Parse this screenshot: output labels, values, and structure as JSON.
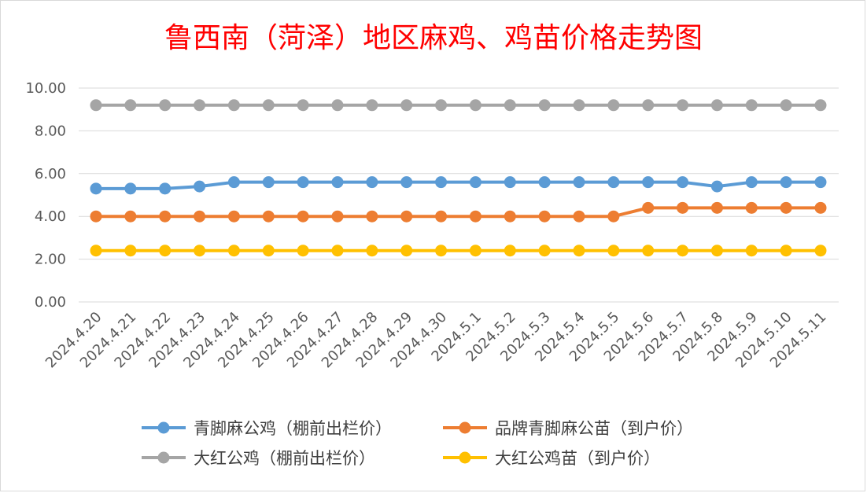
{
  "chart_data": {
    "type": "line",
    "title": "鲁西南（菏泽）地区麻鸡、鸡苗价格走势图",
    "ylim": [
      0,
      10
    ],
    "yticks": [
      "0.00",
      "2.00",
      "4.00",
      "6.00",
      "8.00",
      "10.00"
    ],
    "ytick_values": [
      0,
      2,
      4,
      6,
      8,
      10
    ],
    "grid": true,
    "legend_position": "bottom",
    "categories": [
      "2024.4.20",
      "2024.4.21",
      "2024.4.22",
      "2024.4.23",
      "2024.4.24",
      "2024.4.25",
      "2024.4.26",
      "2024.4.27",
      "2024.4.28",
      "2024.4.29",
      "2024.4.30",
      "2024.5.1",
      "2024.5.2",
      "2024.5.3",
      "2024.5.4",
      "2024.5.5",
      "2024.5.6",
      "2024.5.7",
      "2024.5.8",
      "2024.5.9",
      "2024.5.10",
      "2024.5.11"
    ],
    "series": [
      {
        "name": "青脚麻公鸡（棚前出栏价）",
        "color": "#5b9bd5",
        "values": [
          5.3,
          5.3,
          5.3,
          5.4,
          5.6,
          5.6,
          5.6,
          5.6,
          5.6,
          5.6,
          5.6,
          5.6,
          5.6,
          5.6,
          5.6,
          5.6,
          5.6,
          5.6,
          5.4,
          5.6,
          5.6,
          5.6
        ]
      },
      {
        "name": "品牌青脚麻公苗（到户价）",
        "color": "#ed7d31",
        "values": [
          4.0,
          4.0,
          4.0,
          4.0,
          4.0,
          4.0,
          4.0,
          4.0,
          4.0,
          4.0,
          4.0,
          4.0,
          4.0,
          4.0,
          4.0,
          4.0,
          4.4,
          4.4,
          4.4,
          4.4,
          4.4,
          4.4
        ]
      },
      {
        "name": "大红公鸡（棚前出栏价）",
        "color": "#a5a5a5",
        "values": [
          9.2,
          9.2,
          9.2,
          9.2,
          9.2,
          9.2,
          9.2,
          9.2,
          9.2,
          9.2,
          9.2,
          9.2,
          9.2,
          9.2,
          9.2,
          9.2,
          9.2,
          9.2,
          9.2,
          9.2,
          9.2,
          9.2
        ]
      },
      {
        "name": "大红公鸡苗（到户价）",
        "color": "#ffc000",
        "values": [
          2.4,
          2.4,
          2.4,
          2.4,
          2.4,
          2.4,
          2.4,
          2.4,
          2.4,
          2.4,
          2.4,
          2.4,
          2.4,
          2.4,
          2.4,
          2.4,
          2.4,
          2.4,
          2.4,
          2.4,
          2.4,
          2.4
        ]
      }
    ]
  }
}
